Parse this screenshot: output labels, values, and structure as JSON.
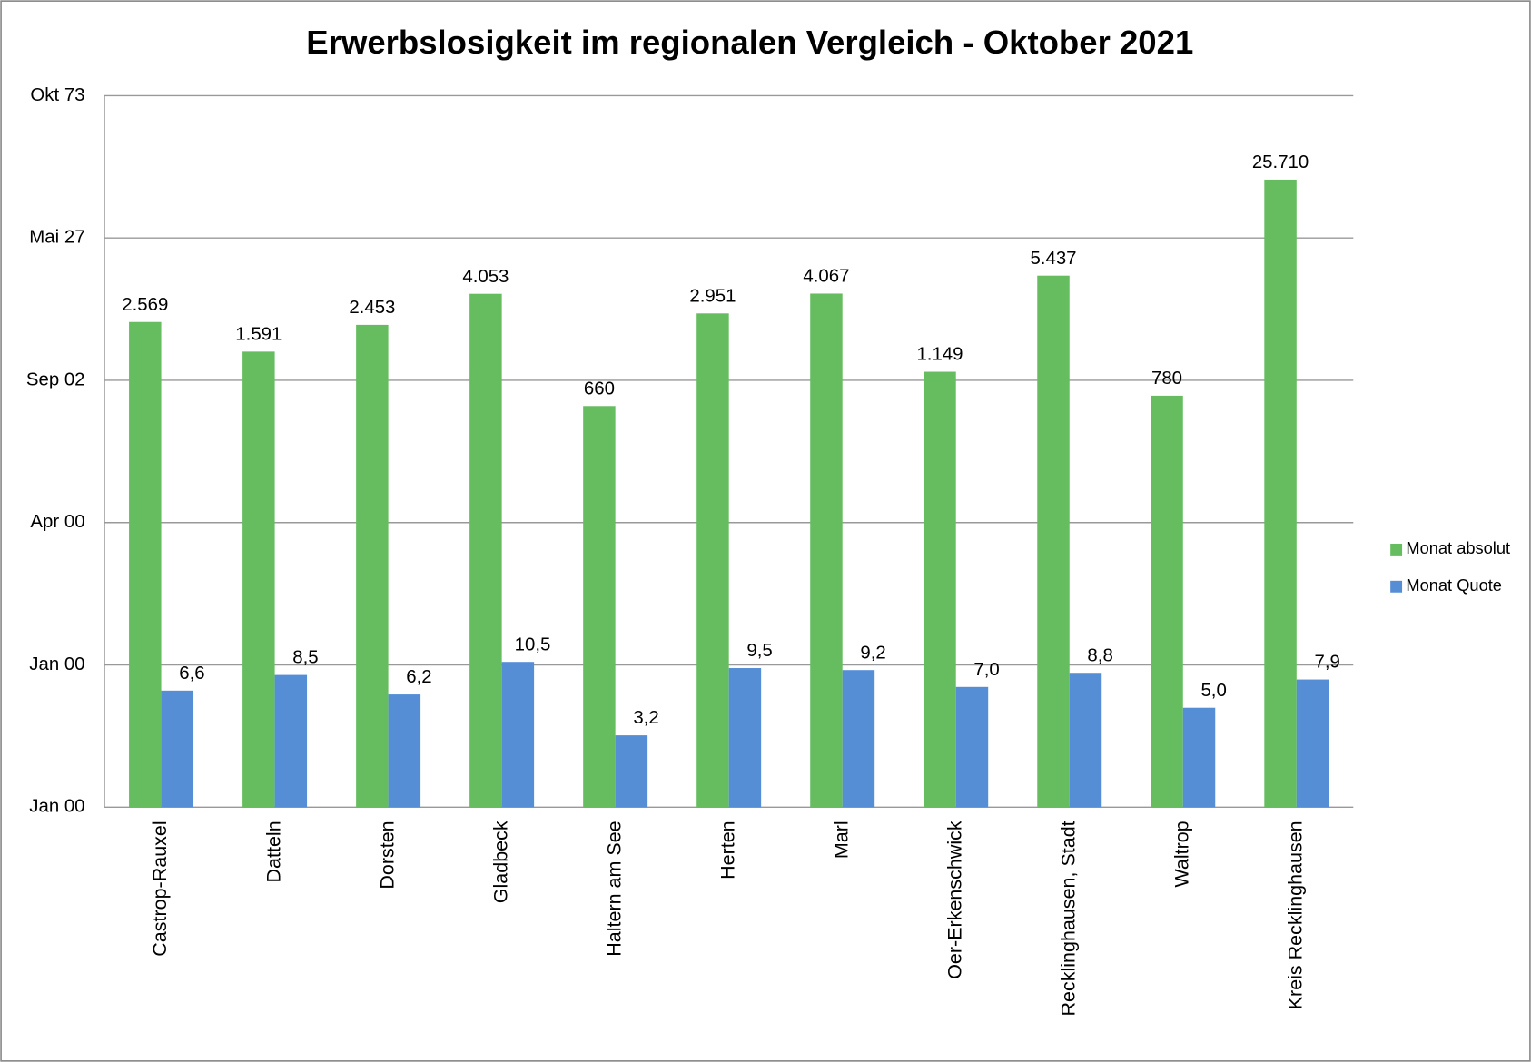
{
  "chart_data": {
    "type": "bar",
    "title": "Erwerbslosigkeit im regionalen Vergleich - Oktober 2021",
    "categories": [
      "Castrop-Rauxel",
      "Datteln",
      "Dorsten",
      "Gladbeck",
      "Haltern am See",
      "Herten",
      "Marl",
      "Oer-Erkenschwick",
      "Recklinghausen, Stadt",
      "Waltrop",
      "Kreis Recklinghausen"
    ],
    "series": [
      {
        "name": "Monat absolut",
        "color": "#66bd60",
        "values": [
          2569,
          1591,
          2453,
          4053,
          660,
          2951,
          4067,
          1149,
          5437,
          780,
          25710
        ],
        "value_labels": [
          "2.569",
          "1.591",
          "2.453",
          "4.053",
          "660",
          "2.951",
          "4.067",
          "1.149",
          "5.437",
          "780",
          "25.710"
        ]
      },
      {
        "name": "Monat Quote",
        "color": "#558ed5",
        "values": [
          6.6,
          8.5,
          6.2,
          10.5,
          3.2,
          9.5,
          9.2,
          7.0,
          8.8,
          5.0,
          7.9
        ],
        "value_labels": [
          "6,6",
          "8,5",
          "6,2",
          "10,5",
          "3,2",
          "9,5",
          "9,2",
          "7,0",
          "8,8",
          "5,0",
          "7,9"
        ]
      }
    ],
    "log_scale": true,
    "ylim": [
      1,
      100000
    ],
    "yticks": [
      {
        "value": 1,
        "label": "Jan 00"
      },
      {
        "value": 10,
        "label": "Jan 00"
      },
      {
        "value": 100,
        "label": "Apr 00"
      },
      {
        "value": 1000,
        "label": "Sep 02"
      },
      {
        "value": 10000,
        "label": "Mai 27"
      },
      {
        "value": 100000,
        "label": "Okt 73"
      }
    ],
    "grid": true,
    "legend": "right"
  }
}
